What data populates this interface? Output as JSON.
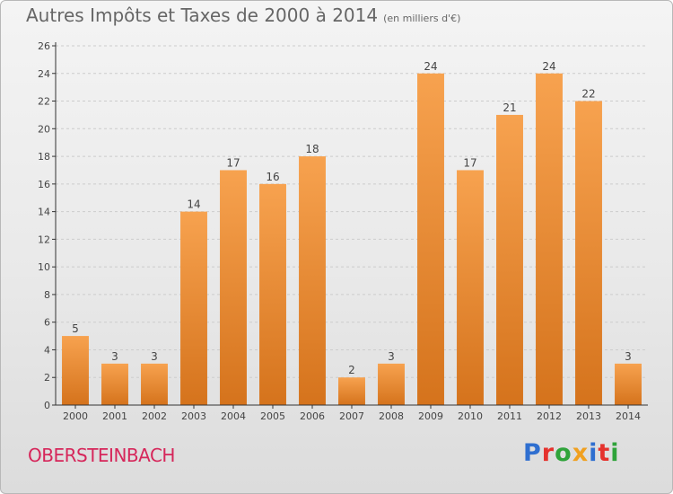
{
  "title": "Autres Impôts et Taxes de 2000 à 2014",
  "unit_note": "(en milliers d'€)",
  "commune": "OBERSTEINBACH",
  "logo": {
    "text": "Proxiti",
    "letters": [
      {
        "char": "P",
        "color": "#2f6fd0"
      },
      {
        "char": "r",
        "color": "#e5322d"
      },
      {
        "char": "o",
        "color": "#2fa33a"
      },
      {
        "char": "x",
        "color": "#f0a020"
      },
      {
        "char": "i",
        "color": "#2f6fd0"
      },
      {
        "char": "t",
        "color": "#e5322d"
      },
      {
        "char": "i",
        "color": "#2fa33a"
      }
    ]
  },
  "colors": {
    "bar_top": "#f7a24f",
    "bar_bottom": "#d5731c",
    "axis": "#333333",
    "grid": "#cccccc",
    "commune": "#d6265a"
  },
  "chart_data": {
    "type": "bar",
    "title": "Autres Impôts et Taxes de 2000 à 2014",
    "subtitle": "(en milliers d'€)",
    "categories": [
      "2000",
      "2001",
      "2002",
      "2003",
      "2004",
      "2005",
      "2006",
      "2007",
      "2008",
      "2009",
      "2010",
      "2011",
      "2012",
      "2013",
      "2014"
    ],
    "values": [
      5,
      3,
      3,
      14,
      17,
      16,
      18,
      2,
      3,
      24,
      17,
      21,
      24,
      22,
      3
    ],
    "ylim": [
      0,
      26
    ],
    "yticks": [
      0,
      2,
      4,
      6,
      8,
      10,
      12,
      14,
      16,
      18,
      20,
      22,
      24,
      26
    ],
    "grid": true,
    "xlabel": "",
    "ylabel": ""
  }
}
